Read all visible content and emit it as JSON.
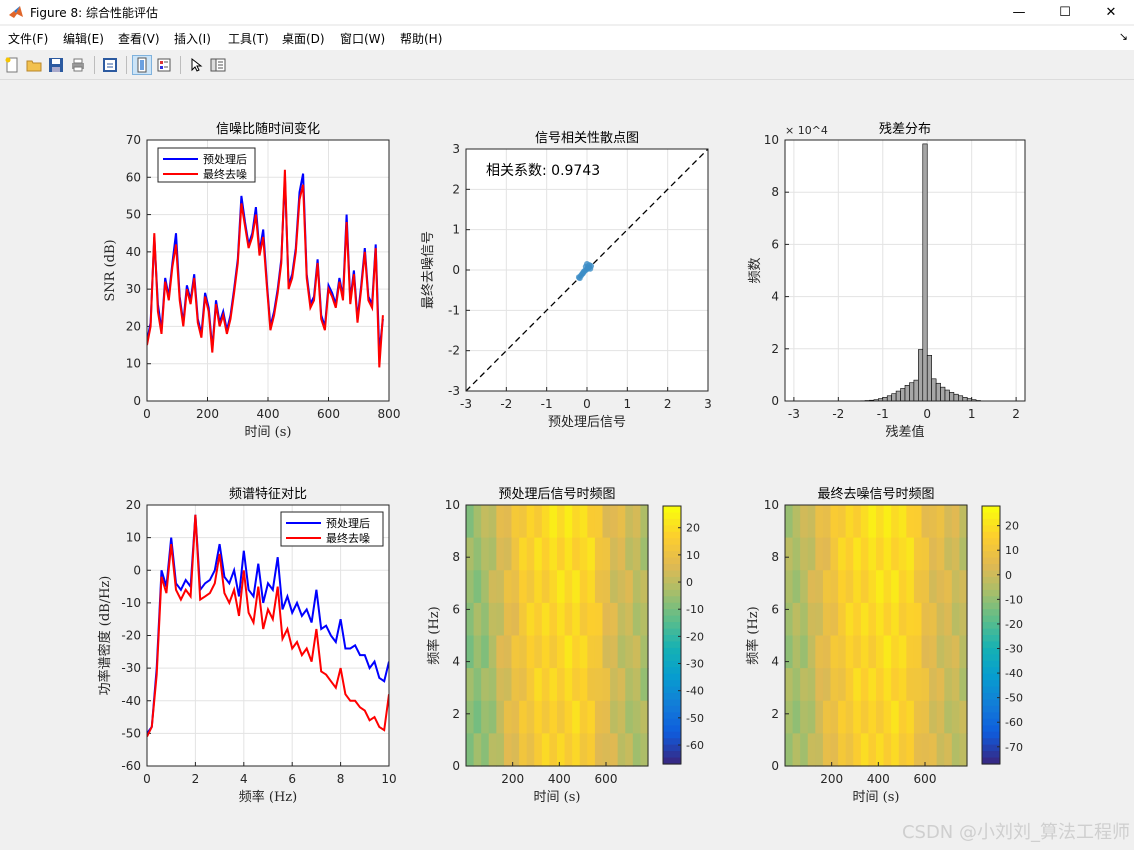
{
  "window": {
    "title": "Figure 8: 综合性能评估",
    "buttons": {
      "minimize": "—",
      "maximize": "☐",
      "close": "✕"
    }
  },
  "menu": {
    "items": [
      "文件(F)",
      "编辑(E)",
      "查看(V)",
      "插入(I)",
      "工具(T)",
      "桌面(D)",
      "窗口(W)",
      "帮助(H)"
    ],
    "dock_symbol": "↘"
  },
  "toolbar": {
    "icons": [
      "new-figure-icon",
      "open-file-icon",
      "save-icon",
      "print-icon",
      "print-preview-icon",
      "link-plot-icon",
      "insert-colorbar-icon",
      "edit-pointer-icon",
      "property-inspector-icon"
    ]
  },
  "colors": {
    "series_a": "#0000ff",
    "series_b": "#ff0000",
    "scatter": "#3c8dc7",
    "hist_bar": "#a6a6a6",
    "grid": "#e0e0e0"
  },
  "chart_data": [
    {
      "type": "line",
      "title": "信噪比随时间变化",
      "xlabel": "时间 (s)",
      "ylabel": "SNR (dB)",
      "xlim": [
        0,
        800
      ],
      "ylim": [
        0,
        70
      ],
      "xticks": [
        "0",
        "200",
        "400",
        "600",
        "800"
      ],
      "yticks": [
        "0",
        "10",
        "20",
        "30",
        "40",
        "50",
        "60",
        "70"
      ],
      "legend": "top-left",
      "series": [
        {
          "name": "预处理后",
          "color": "#0000ff",
          "x": [
            0,
            12,
            24,
            36,
            48,
            60,
            72,
            84,
            96,
            108,
            120,
            132,
            144,
            156,
            168,
            180,
            192,
            204,
            216,
            228,
            240,
            252,
            264,
            276,
            288,
            300,
            312,
            324,
            336,
            348,
            360,
            372,
            384,
            396,
            408,
            420,
            432,
            444,
            456,
            468,
            480,
            492,
            504,
            516,
            528,
            540,
            552,
            564,
            576,
            588,
            600,
            612,
            624,
            636,
            648,
            660,
            672,
            684,
            696,
            708,
            720,
            732,
            744,
            756,
            768,
            780
          ],
          "values": [
            16,
            21,
            44,
            26,
            19,
            33,
            28,
            37,
            45,
            28,
            21,
            31,
            27,
            34,
            22,
            18,
            29,
            25,
            14,
            27,
            21,
            24,
            19,
            23,
            30,
            38,
            55,
            48,
            42,
            45,
            52,
            40,
            46,
            32,
            20,
            24,
            30,
            38,
            60,
            31,
            34,
            41,
            56,
            61,
            34,
            26,
            28,
            38,
            23,
            20,
            31,
            29,
            26,
            33,
            28,
            50,
            27,
            35,
            22,
            31,
            41,
            28,
            26,
            42,
            13,
            22
          ]
        },
        {
          "name": "最终去噪",
          "color": "#ff0000",
          "x": [
            0,
            12,
            24,
            36,
            48,
            60,
            72,
            84,
            96,
            108,
            120,
            132,
            144,
            156,
            168,
            180,
            192,
            204,
            216,
            228,
            240,
            252,
            264,
            276,
            288,
            300,
            312,
            324,
            336,
            348,
            360,
            372,
            384,
            396,
            408,
            420,
            432,
            444,
            456,
            468,
            480,
            492,
            504,
            516,
            528,
            540,
            552,
            564,
            576,
            588,
            600,
            612,
            624,
            636,
            648,
            660,
            672,
            684,
            696,
            708,
            720,
            732,
            744,
            756,
            768,
            780
          ],
          "values": [
            15,
            20,
            45,
            24,
            18,
            32,
            27,
            36,
            42,
            27,
            20,
            30,
            26,
            33,
            21,
            17,
            28,
            24,
            13,
            26,
            20,
            23,
            18,
            22,
            29,
            37,
            53,
            47,
            41,
            44,
            50,
            39,
            44,
            31,
            19,
            23,
            29,
            37,
            62,
            30,
            33,
            40,
            54,
            58,
            33,
            25,
            27,
            37,
            22,
            19,
            30,
            28,
            25,
            32,
            27,
            48,
            26,
            34,
            21,
            30,
            40,
            27,
            25,
            41,
            9,
            23
          ]
        }
      ]
    },
    {
      "type": "scatter",
      "title": "信号相关性散点图",
      "xlabel": "预处理后信号",
      "ylabel": "最终去噪信号",
      "xlim": [
        -3,
        3
      ],
      "ylim": [
        -3,
        3
      ],
      "xticks": [
        "-3",
        "-2",
        "-1",
        "0",
        "1",
        "2",
        "3"
      ],
      "yticks": [
        "-3",
        "-2",
        "-1",
        "0",
        "1",
        "2",
        "3"
      ],
      "annotation": "相关系数: 0.9743",
      "x": [
        -0.2,
        -0.15,
        -0.1,
        -0.05,
        0,
        0.05,
        0.1,
        -0.12,
        0.02,
        -0.08,
        0.06,
        -0.18,
        0.0,
        -0.03,
        0.08
      ],
      "y": [
        -0.18,
        -0.14,
        -0.08,
        -0.02,
        0.02,
        0.06,
        0.1,
        -0.1,
        0.05,
        -0.04,
        0.12,
        -0.2,
        0.15,
        0.08,
        0.03
      ]
    },
    {
      "type": "bar",
      "title": "残差分布",
      "xlabel": "残差值",
      "ylabel": "频数",
      "exponent": "× 10^4",
      "xlim": [
        -3.2,
        2.2
      ],
      "ylim": [
        0,
        100000
      ],
      "xticks": [
        "-3",
        "-2",
        "-1",
        "0",
        "1",
        "2"
      ],
      "yticks": [
        "0",
        "2",
        "4",
        "6",
        "8",
        "10"
      ],
      "bin_width": 0.1,
      "bin_centers": [
        -1.45,
        -1.35,
        -1.25,
        -1.15,
        -1.05,
        -0.95,
        -0.85,
        -0.75,
        -0.65,
        -0.55,
        -0.45,
        -0.35,
        -0.25,
        -0.15,
        -0.05,
        0.05,
        0.15,
        0.25,
        0.35,
        0.45,
        0.55,
        0.65,
        0.75,
        0.85,
        0.95,
        1.05,
        1.15
      ],
      "values": [
        100,
        200,
        300,
        500,
        900,
        1400,
        2000,
        2800,
        3800,
        4800,
        6000,
        7000,
        8000,
        19700,
        98500,
        17500,
        8500,
        6800,
        5300,
        4200,
        3300,
        2600,
        2000,
        1400,
        900,
        500,
        200
      ]
    },
    {
      "type": "line",
      "title": "频谱特征对比",
      "xlabel": "频率 (Hz)",
      "ylabel": "功率谱密度 (dB/Hz)",
      "xlim": [
        0,
        10
      ],
      "ylim": [
        -60,
        20
      ],
      "xticks": [
        "0",
        "2",
        "4",
        "6",
        "8",
        "10"
      ],
      "yticks": [
        "-60",
        "-50",
        "-40",
        "-30",
        "-20",
        "-10",
        "0",
        "10",
        "20"
      ],
      "legend": "top-right",
      "series": [
        {
          "name": "预处理后",
          "color": "#0000ff",
          "x": [
            0,
            0.2,
            0.4,
            0.6,
            0.8,
            1.0,
            1.2,
            1.4,
            1.6,
            1.8,
            2.0,
            2.2,
            2.4,
            2.6,
            2.8,
            3.0,
            3.2,
            3.4,
            3.6,
            3.8,
            4.0,
            4.2,
            4.4,
            4.6,
            4.8,
            5.0,
            5.2,
            5.4,
            5.6,
            5.8,
            6.0,
            6.2,
            6.4,
            6.6,
            6.8,
            7.0,
            7.2,
            7.4,
            7.6,
            7.8,
            8.0,
            8.2,
            8.4,
            8.6,
            8.8,
            9.0,
            9.2,
            9.4,
            9.6,
            9.8,
            10.0
          ],
          "values": [
            -50,
            -48,
            -30,
            0,
            -5,
            10,
            -4,
            -6,
            -3,
            -5,
            17,
            -6,
            -4,
            -3,
            0,
            8,
            -2,
            -4,
            0,
            -8,
            6,
            -6,
            -8,
            2,
            -10,
            -4,
            -6,
            4,
            -12,
            -8,
            -13,
            -10,
            -14,
            -12,
            -16,
            -6,
            -18,
            -17,
            -20,
            -22,
            -15,
            -24,
            -24,
            -23,
            -26,
            -26,
            -30,
            -28,
            -33,
            -34,
            -28
          ]
        },
        {
          "name": "最终去噪",
          "color": "#ff0000",
          "x": [
            0,
            0.2,
            0.4,
            0.6,
            0.8,
            1.0,
            1.2,
            1.4,
            1.6,
            1.8,
            2.0,
            2.2,
            2.4,
            2.6,
            2.8,
            3.0,
            3.2,
            3.4,
            3.6,
            3.8,
            4.0,
            4.2,
            4.4,
            4.6,
            4.8,
            5.0,
            5.2,
            5.4,
            5.6,
            5.8,
            6.0,
            6.2,
            6.4,
            6.6,
            6.8,
            7.0,
            7.2,
            7.4,
            7.6,
            7.8,
            8.0,
            8.2,
            8.4,
            8.6,
            8.8,
            9.0,
            9.2,
            9.4,
            9.6,
            9.8,
            10.0
          ],
          "values": [
            -51,
            -48,
            -32,
            -2,
            -7,
            8,
            -6,
            -9,
            -6,
            -8,
            17,
            -9,
            -8,
            -7,
            -4,
            5,
            -7,
            -10,
            -6,
            -14,
            0,
            -13,
            -16,
            -5,
            -18,
            -12,
            -15,
            -5,
            -21,
            -18,
            -24,
            -22,
            -26,
            -24,
            -28,
            -18,
            -31,
            -32,
            -34,
            -36,
            -30,
            -38,
            -40,
            -40,
            -42,
            -43,
            -46,
            -45,
            -48,
            -49,
            -38
          ]
        }
      ]
    },
    {
      "type": "heatmap",
      "title": "预处理后信号时频图",
      "xlabel": "时间 (s)",
      "ylabel": "频率 (Hz)",
      "xlim": [
        0,
        780
      ],
      "ylim": [
        0,
        10
      ],
      "xticks": [
        "200",
        "400",
        "600"
      ],
      "yticks": [
        "0",
        "2",
        "4",
        "6",
        "8",
        "10"
      ],
      "clim": [
        -67,
        28
      ],
      "cticks": [
        "20",
        "10",
        "0",
        "-10",
        "-20",
        "-30",
        "-40",
        "-50",
        "-60"
      ],
      "rows": 8,
      "cols": 24,
      "mean_levels": [
        -5,
        -2,
        8,
        16,
        20,
        21,
        22,
        19,
        8,
        4,
        0
      ]
    },
    {
      "type": "heatmap",
      "title": "最终去噪信号时频图",
      "xlabel": "时间 (s)",
      "ylabel": "频率 (Hz)",
      "xlim": [
        0,
        780
      ],
      "ylim": [
        0,
        10
      ],
      "xticks": [
        "200",
        "400",
        "600"
      ],
      "yticks": [
        "0",
        "2",
        "4",
        "6",
        "8",
        "10"
      ],
      "clim": [
        -77,
        28
      ],
      "cticks": [
        "20",
        "10",
        "0",
        "-10",
        "-20",
        "-30",
        "-40",
        "-50",
        "-60",
        "-70"
      ],
      "rows": 8,
      "cols": 24,
      "mean_levels": [
        -5,
        -2,
        8,
        16,
        20,
        21,
        22,
        19,
        8,
        4,
        0
      ]
    }
  ],
  "watermark": "CSDN @小刘刘_算法工程师"
}
